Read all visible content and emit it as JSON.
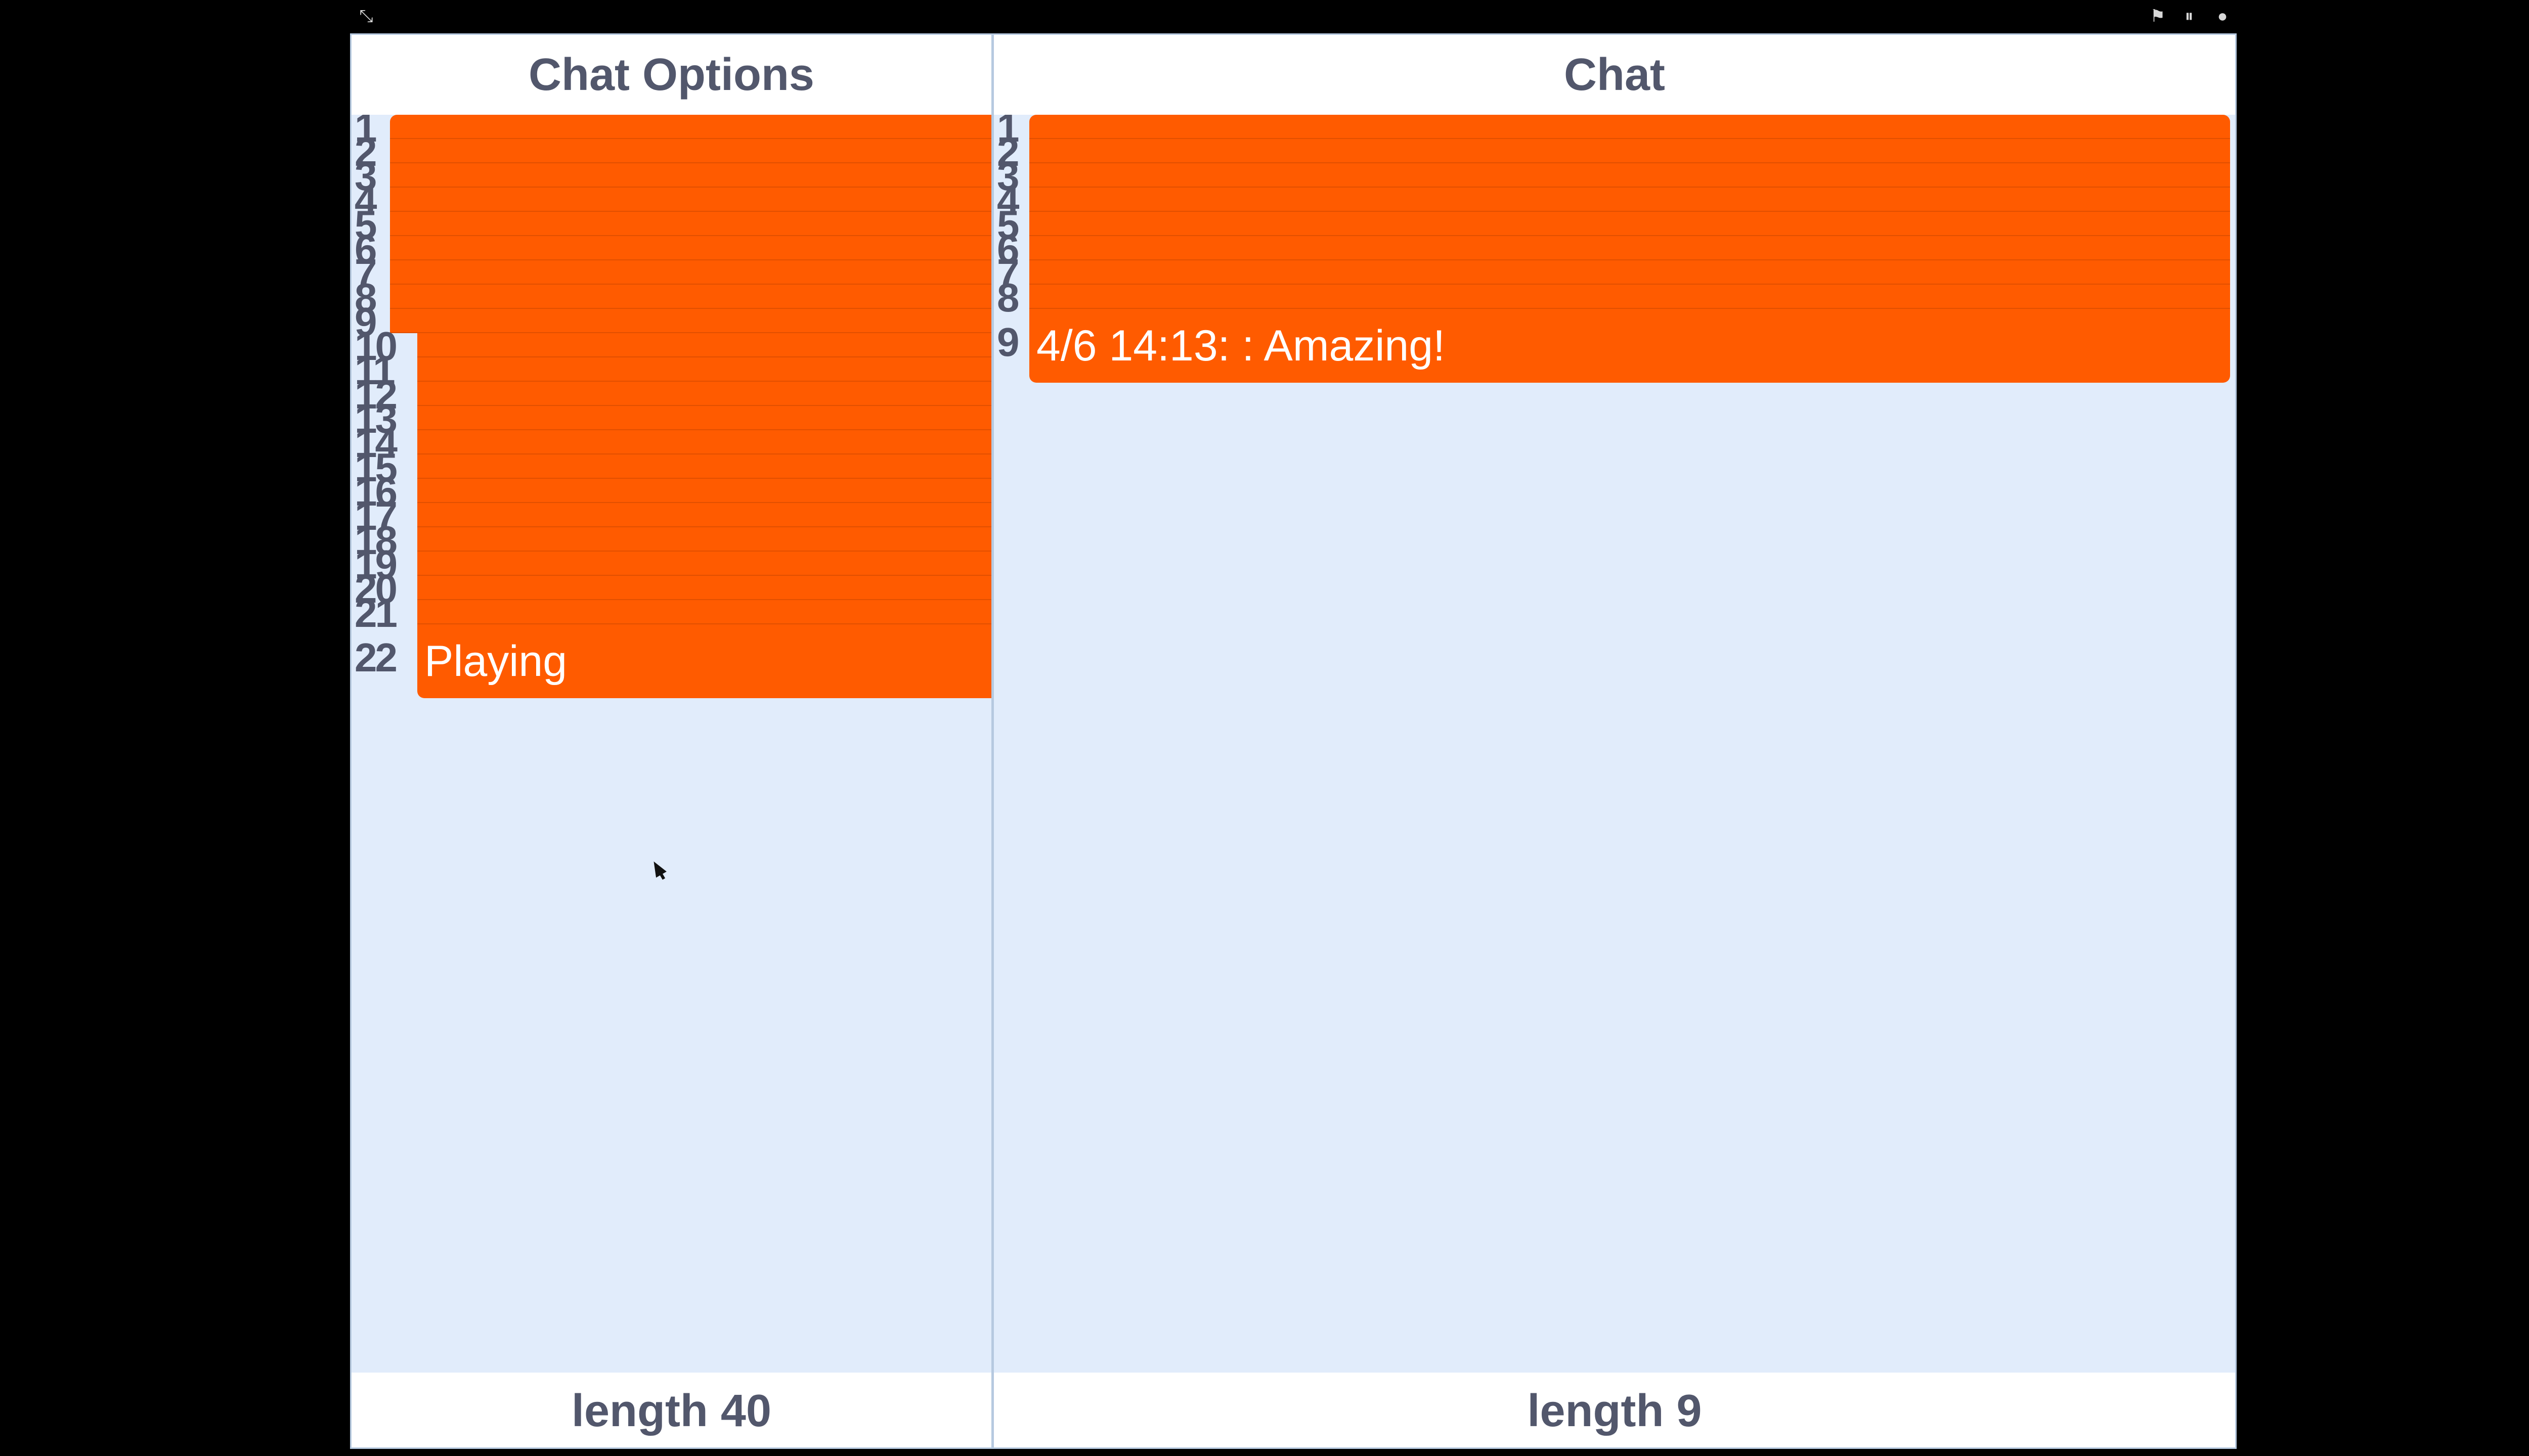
{
  "topbar": {
    "stage_toggle_icon": "shrink-icon",
    "flag_icon": "flag-icon",
    "pause_icon": "pause-icon",
    "stop_icon": "stop-icon",
    "flag_glyph": "⚑",
    "pause_glyph": "⏸",
    "stop_glyph": "●",
    "shrink_glyph": "⤡"
  },
  "left_watcher": {
    "title": "Chat Options",
    "footer": "length 40",
    "items": [
      {
        "index": "1",
        "text": ""
      },
      {
        "index": "2",
        "text": ""
      },
      {
        "index": "3",
        "text": ""
      },
      {
        "index": "4",
        "text": ""
      },
      {
        "index": "5",
        "text": ""
      },
      {
        "index": "6",
        "text": ""
      },
      {
        "index": "7",
        "text": ""
      },
      {
        "index": "8",
        "text": ""
      },
      {
        "index": "9",
        "text": ""
      },
      {
        "index": "10",
        "text": ""
      },
      {
        "index": "11",
        "text": ""
      },
      {
        "index": "12",
        "text": ""
      },
      {
        "index": "13",
        "text": ""
      },
      {
        "index": "14",
        "text": ""
      },
      {
        "index": "15",
        "text": ""
      },
      {
        "index": "16",
        "text": ""
      },
      {
        "index": "17",
        "text": ""
      },
      {
        "index": "18",
        "text": ""
      },
      {
        "index": "19",
        "text": ""
      },
      {
        "index": "20",
        "text": ""
      },
      {
        "index": "21",
        "text": ""
      },
      {
        "index": "22",
        "text": "Playing"
      }
    ]
  },
  "right_watcher": {
    "title": "Chat",
    "footer": "length 9",
    "items": [
      {
        "index": "1",
        "text": ""
      },
      {
        "index": "2",
        "text": ""
      },
      {
        "index": "3",
        "text": ""
      },
      {
        "index": "4",
        "text": ""
      },
      {
        "index": "5",
        "text": ""
      },
      {
        "index": "6",
        "text": ""
      },
      {
        "index": "7",
        "text": ""
      },
      {
        "index": "8",
        "text": ""
      },
      {
        "index": "9",
        "text": "4/6 14:13: : Amazing!"
      }
    ]
  },
  "colors": {
    "item_fill": "#ff5b00",
    "stage_background": "#e1ecfb",
    "label_text": "#52576c"
  }
}
